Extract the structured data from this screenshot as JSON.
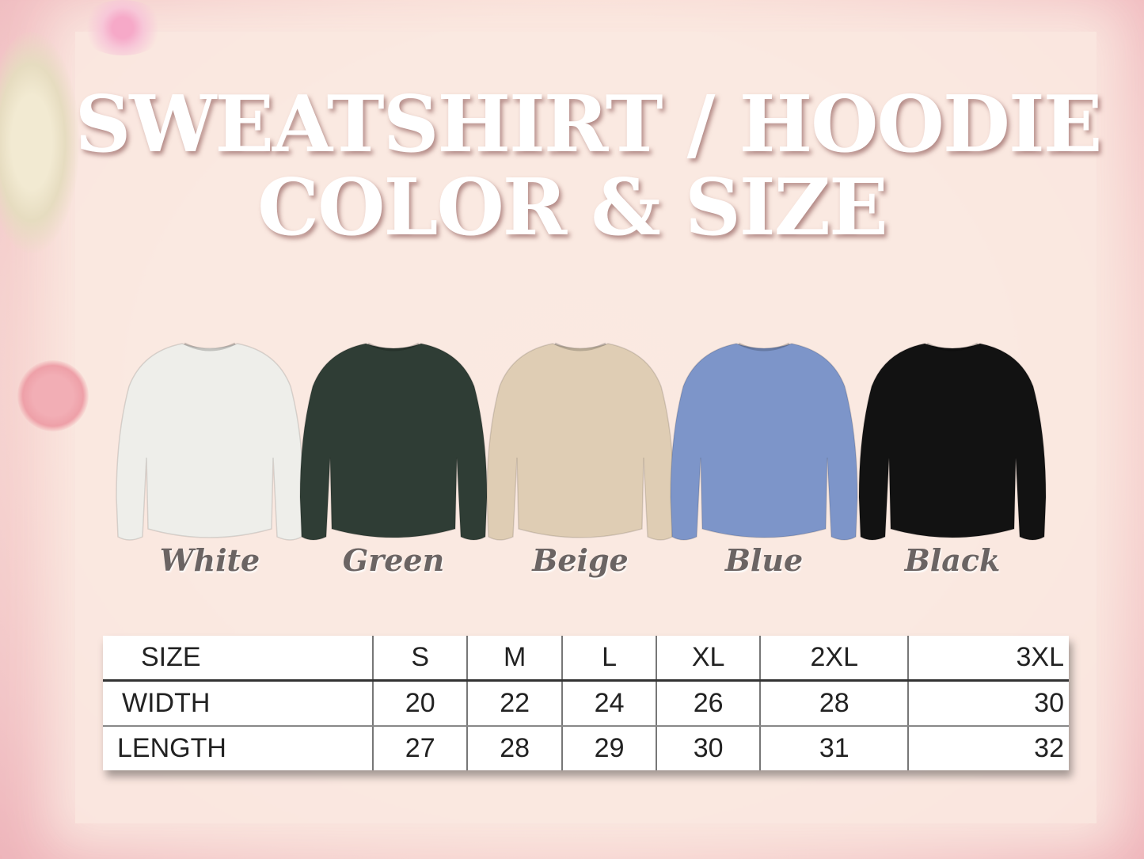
{
  "title": {
    "line1": "SWEATSHIRT / HOODIE",
    "line2": "COLOR & SIZE"
  },
  "colors": [
    {
      "name": "White",
      "hex": "#eeeeea"
    },
    {
      "name": "Green",
      "hex": "#2f3d35"
    },
    {
      "name": "Beige",
      "hex": "#dfcdb4"
    },
    {
      "name": "Blue",
      "hex": "#7d95c9"
    },
    {
      "name": "Black",
      "hex": "#121212"
    }
  ],
  "size_table": {
    "header": [
      "SIZE",
      "S",
      "M",
      "L",
      "XL",
      "2XL",
      "3XL"
    ],
    "rows": [
      [
        "WIDTH",
        "20",
        "22",
        "24",
        "26",
        "28",
        "30"
      ],
      [
        "LENGTH",
        "27",
        "28",
        "29",
        "30",
        "31",
        "32"
      ]
    ]
  }
}
